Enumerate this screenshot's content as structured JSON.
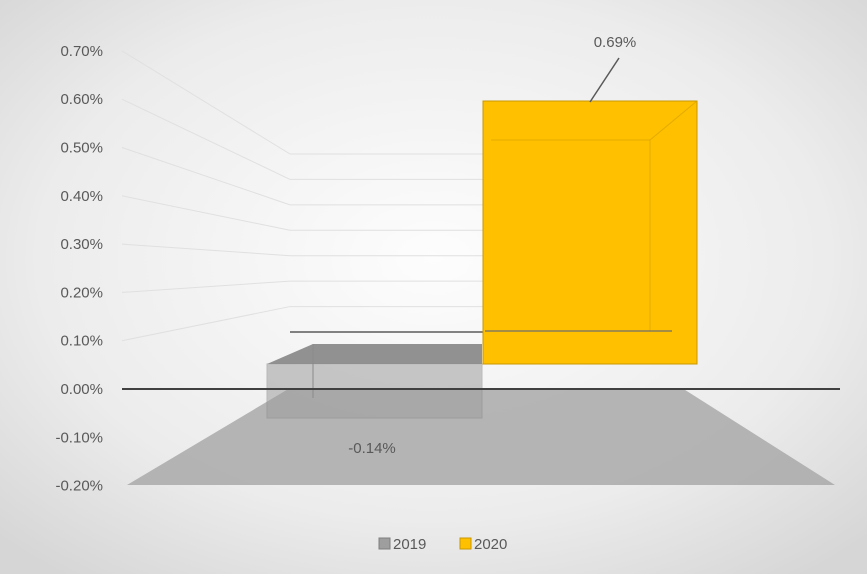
{
  "chart_data": {
    "type": "bar",
    "title": "",
    "xlabel": "",
    "ylabel": "",
    "ylim": [
      -0.2,
      0.7
    ],
    "y_ticks": [
      "0.70%",
      "0.60%",
      "0.50%",
      "0.40%",
      "0.30%",
      "0.20%",
      "0.10%",
      "0.00%",
      "-0.10%",
      "-0.20%"
    ],
    "y_tick_values": [
      0.7,
      0.6,
      0.5,
      0.4,
      0.3,
      0.2,
      0.1,
      0.0,
      -0.1,
      -0.2
    ],
    "grid": true,
    "legend_position": "bottom",
    "series": [
      {
        "name": "2019",
        "value": -0.14,
        "label": "-0.14%",
        "color": "#9e9e9e"
      },
      {
        "name": "2020",
        "value": 0.69,
        "label": "0.69%",
        "color": "#ffc000"
      }
    ],
    "colors": {
      "background_center": "#fbfbfb",
      "background_edge": "#dcdcdc",
      "floor": "#a9a9a9",
      "zero_line": "#404040",
      "grid": "#e0e0e0",
      "text": "#595959"
    }
  }
}
